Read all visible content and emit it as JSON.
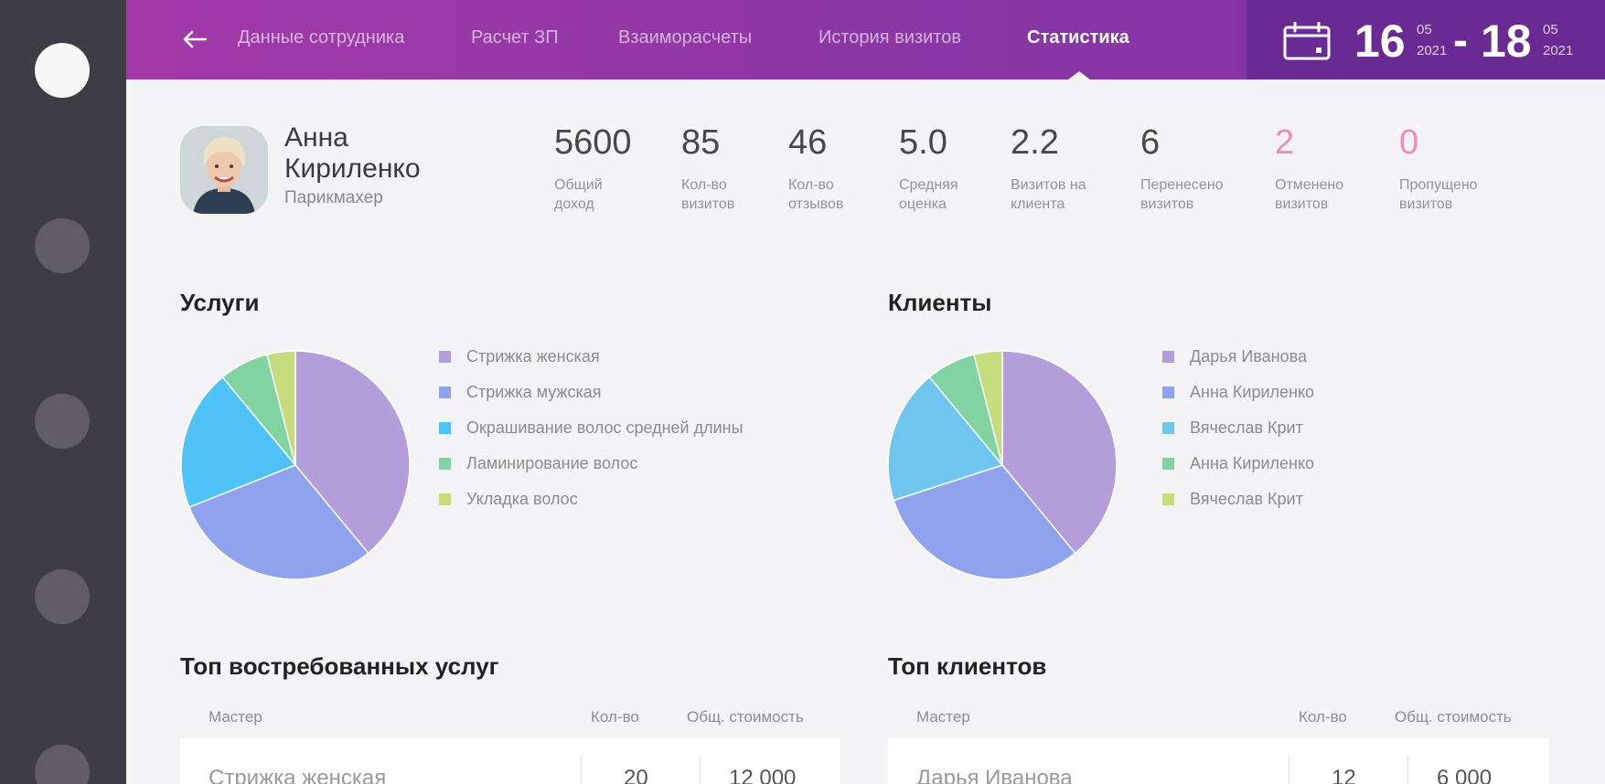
{
  "header": {
    "tabs": [
      {
        "label": "Данные сотрудника",
        "active": false
      },
      {
        "label": "Расчет ЗП",
        "active": false
      },
      {
        "label": "Взаиморасчеты",
        "active": false
      },
      {
        "label": "История визитов",
        "active": false
      },
      {
        "label": "Статистика",
        "active": true
      }
    ],
    "back_icon": "arrow-left-icon",
    "date_range": {
      "icon": "calendar-icon",
      "from": {
        "day": "16",
        "month": "05",
        "year": "2021"
      },
      "separator": "-",
      "to": {
        "day": "18",
        "month": "05",
        "year": "2021"
      }
    }
  },
  "employee": {
    "name": "Анна Кириленко",
    "role": "Парикмахер"
  },
  "stats": [
    {
      "value": "5600",
      "label": "Общий доход",
      "highlight": false
    },
    {
      "value": "85",
      "label": "Кол-во визитов",
      "highlight": false
    },
    {
      "value": "46",
      "label": "Кол-во отзывов",
      "highlight": false
    },
    {
      "value": "5.0",
      "label": "Средняя оценка",
      "highlight": false
    },
    {
      "value": "2.2",
      "label": "Визитов на клиента",
      "highlight": false
    },
    {
      "value": "6",
      "label": "Перенесено визитов",
      "highlight": false
    },
    {
      "value": "2",
      "label": "Отменено визитов",
      "highlight": true
    },
    {
      "value": "0",
      "label": "Пропущено визитов",
      "highlight": true
    }
  ],
  "colors": {
    "slice1": "#b39ddb",
    "slice2": "#8ea2ee",
    "slice3": "#4fc3f7",
    "slice4": "#81d4a2",
    "slice5": "#c5dc7c",
    "accent_pink": "#f28bb6"
  },
  "services": {
    "title": "Услуги",
    "chart_data": {
      "type": "pie",
      "labels": [
        "Стрижка женская",
        "Стрижка мужская",
        "Окрашивание волос средней длины",
        "Ламинирование волос",
        "Укладка волос"
      ],
      "values": [
        39,
        30,
        20,
        7,
        4
      ],
      "colors": [
        "#b39ddb",
        "#8ea2ee",
        "#4fc3f7",
        "#81d4a2",
        "#c5dc7c"
      ]
    }
  },
  "clients": {
    "title": "Клиенты",
    "chart_data": {
      "type": "pie",
      "labels": [
        "Дарья Иванова",
        "Анна Кириленко",
        "Вячеслав Крит",
        "Анна Кириленко",
        "Вячеслав Крит"
      ],
      "values": [
        39,
        31,
        19,
        7,
        4
      ],
      "colors": [
        "#b39ddb",
        "#8ea2ee",
        "#6ec6ef",
        "#81d4a2",
        "#c5dc7c"
      ]
    }
  },
  "top_services": {
    "title": "Топ востребованных услуг",
    "columns": [
      "Мастер",
      "Кол-во",
      "Общ. стоимость"
    ],
    "rows": [
      {
        "name": "Стрижка женская",
        "count": "20",
        "total": "12 000"
      }
    ]
  },
  "top_clients": {
    "title": "Топ клиентов",
    "columns": [
      "Мастер",
      "Кол-во",
      "Общ. стоимость"
    ],
    "rows": [
      {
        "name": "Дарья Иванова",
        "count": "12",
        "total": "6 000"
      }
    ]
  }
}
